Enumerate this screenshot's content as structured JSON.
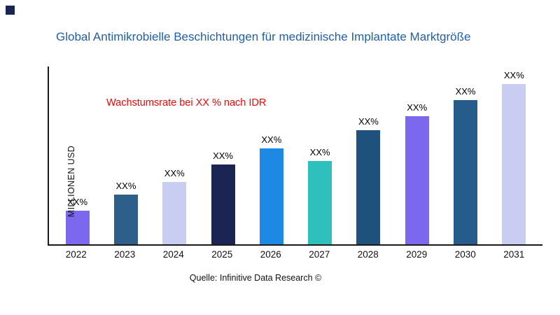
{
  "brand": {
    "corner_square_color": "#1b2553"
  },
  "header": {
    "title": "Global Antimikrobielle Beschichtungen für medizinische Implantate Marktgröße",
    "title_color": "#1f5fad"
  },
  "annotation": {
    "text": "Wachstumsrate bei XX % nach IDR",
    "color": "#ff0000"
  },
  "footer": {
    "source": "Quelle: Infinitive Data Research ©"
  },
  "chart_data": {
    "type": "bar",
    "title": "Global Antimikrobielle Beschichtungen für medizinische Implantate Marktgröße",
    "xlabel": "",
    "ylabel": "MILLIONEN USD",
    "categories": [
      "2022",
      "2023",
      "2024",
      "2025",
      "2026",
      "2027",
      "2028",
      "2029",
      "2030",
      "2031"
    ],
    "values": [
      19,
      28,
      35,
      45,
      54,
      47,
      64,
      72,
      81,
      90
    ],
    "value_labels": [
      "XX%",
      "XX%",
      "XX%",
      "XX%",
      "XX%",
      "XX%",
      "XX%",
      "XX%",
      "XX%",
      "XX%"
    ],
    "bar_colors": [
      "#7b68ee",
      "#2e5f8a",
      "#c9cdf2",
      "#1b2553",
      "#1e88e5",
      "#2fc0bd",
      "#1f517d",
      "#7b68ee",
      "#255c8c",
      "#c9cdf2"
    ],
    "ylim": [
      0,
      100
    ],
    "grid": false,
    "legend": "none",
    "axis_color": "#1a1a1a",
    "annotation": "Wachstumsrate bei XX % nach IDR"
  }
}
